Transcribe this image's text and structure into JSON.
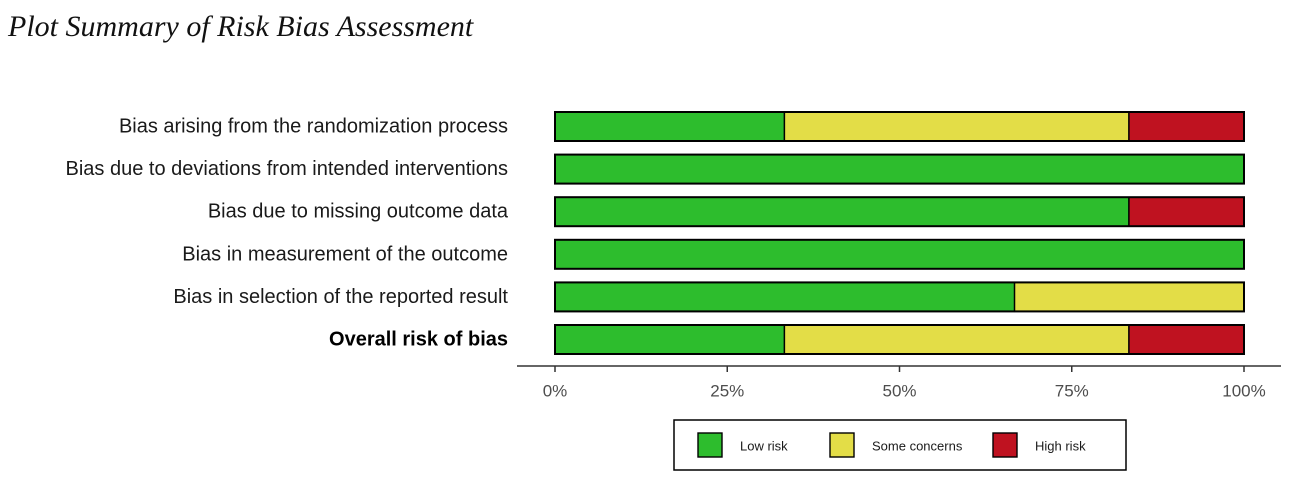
{
  "title": "Plot Summary of Risk Bias Assessment",
  "colors": {
    "low": "#2dbd2d",
    "some": "#e3dd47",
    "high": "#bf1220",
    "frame": "#000000",
    "axis": "#333333"
  },
  "chart_data": {
    "type": "bar",
    "orientation": "horizontal",
    "stacked": true,
    "title": "Plot Summary of Risk Bias Assessment",
    "xlabel": "",
    "ylabel": "",
    "xlim": [
      0,
      100
    ],
    "x_ticks": [
      0,
      25,
      50,
      75,
      100
    ],
    "x_tick_labels": [
      "0%",
      "25%",
      "50%",
      "75%",
      "100%"
    ],
    "grid": false,
    "legend_position": "bottom",
    "categories": [
      "Bias arising from the randomization process",
      "Bias due to deviations from intended interventions",
      "Bias due to missing outcome data",
      "Bias in measurement of the outcome",
      "Bias in selection of the reported result",
      "Overall risk of bias"
    ],
    "bold_category": "Overall risk of bias",
    "series": [
      {
        "name": "Low risk",
        "key": "low",
        "values": [
          33.3,
          100,
          83.3,
          100,
          66.7,
          33.3
        ]
      },
      {
        "name": "Some concerns",
        "key": "some",
        "values": [
          50,
          0,
          0,
          0,
          33.3,
          50
        ]
      },
      {
        "name": "High risk",
        "key": "high",
        "values": [
          16.7,
          0,
          16.7,
          0,
          0,
          16.7
        ]
      }
    ]
  }
}
